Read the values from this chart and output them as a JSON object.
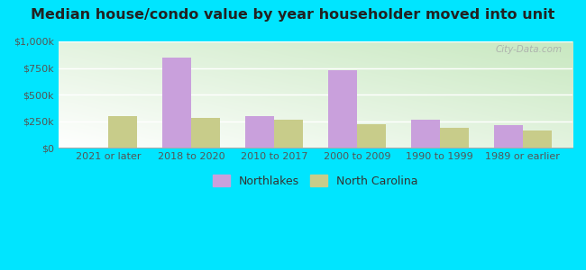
{
  "title": "Median house/condo value by year householder moved into unit",
  "categories": [
    "2021 or later",
    "2018 to 2020",
    "2010 to 2017",
    "2000 to 2009",
    "1990 to 1999",
    "1989 or earlier"
  ],
  "northlakes_values": [
    0,
    850000,
    300000,
    730000,
    265000,
    210000
  ],
  "nc_values": [
    300000,
    280000,
    260000,
    220000,
    185000,
    165000
  ],
  "northlakes_color": "#c9a0dc",
  "nc_color": "#c8cc8a",
  "background_outer": "#00e5ff",
  "gradient_green": "#c8e6c0",
  "gradient_white": "#f5fff5",
  "ylim": [
    0,
    1000000
  ],
  "yticks": [
    0,
    250000,
    500000,
    750000,
    1000000
  ],
  "ytick_labels": [
    "$0",
    "$250k",
    "$500k",
    "$750k",
    "$1,000k"
  ],
  "legend_northlakes": "Northlakes",
  "legend_nc": "North Carolina",
  "bar_width": 0.35,
  "watermark": "City-Data.com",
  "title_fontsize": 11.5,
  "tick_fontsize": 8,
  "legend_fontsize": 9
}
